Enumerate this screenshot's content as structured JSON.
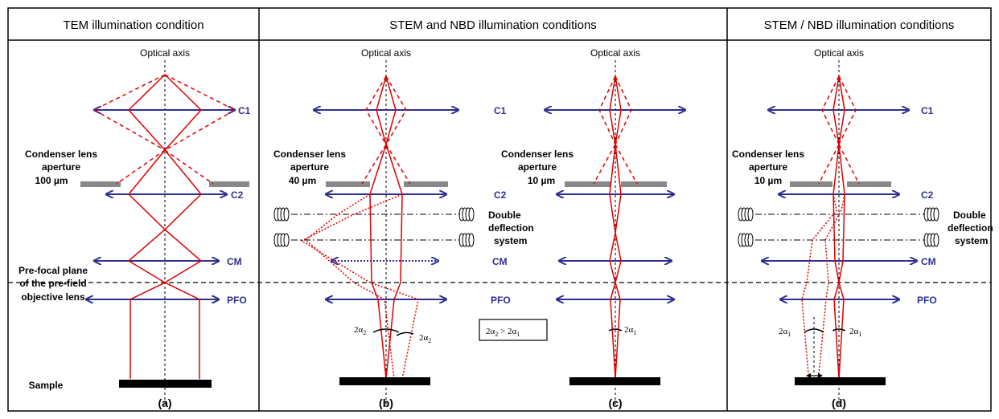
{
  "headers": {
    "tem": "TEM illumination condition",
    "stem_nbd": "STEM and NBD illumination conditions",
    "stem_slash_nbd": "STEM / NBD illumination conditions"
  },
  "optical_axis": "Optical axis",
  "lenses": {
    "c1": "C1",
    "c2": "C2",
    "cm": "CM",
    "pfo": "PFO"
  },
  "labels": {
    "condenser_lens": "Condenser lens",
    "aperture": "aperture",
    "aperture_a": "100 µm",
    "aperture_b": "40 µm",
    "aperture_c": "10 µm",
    "aperture_d": "10 µm",
    "pre_focal_1": "Pre-focal plane",
    "pre_focal_2": "of the pre-field",
    "pre_focal_3": "objective lens",
    "sample": "Sample",
    "double": "Double",
    "deflection": "deflection",
    "system": "system",
    "alpha_symbol": "2α",
    "alpha_sub_1": "1",
    "alpha_sub_2": "2",
    "compare_left": "2α",
    "compare_op": " > 2α"
  },
  "panels": {
    "a": "(a)",
    "b": "(b)",
    "c": "(c)",
    "d": "(d)"
  },
  "colors": {
    "lens": "#2f2f8f",
    "ray": "#e00000",
    "aperture": "#888888",
    "sample": "#000000"
  }
}
